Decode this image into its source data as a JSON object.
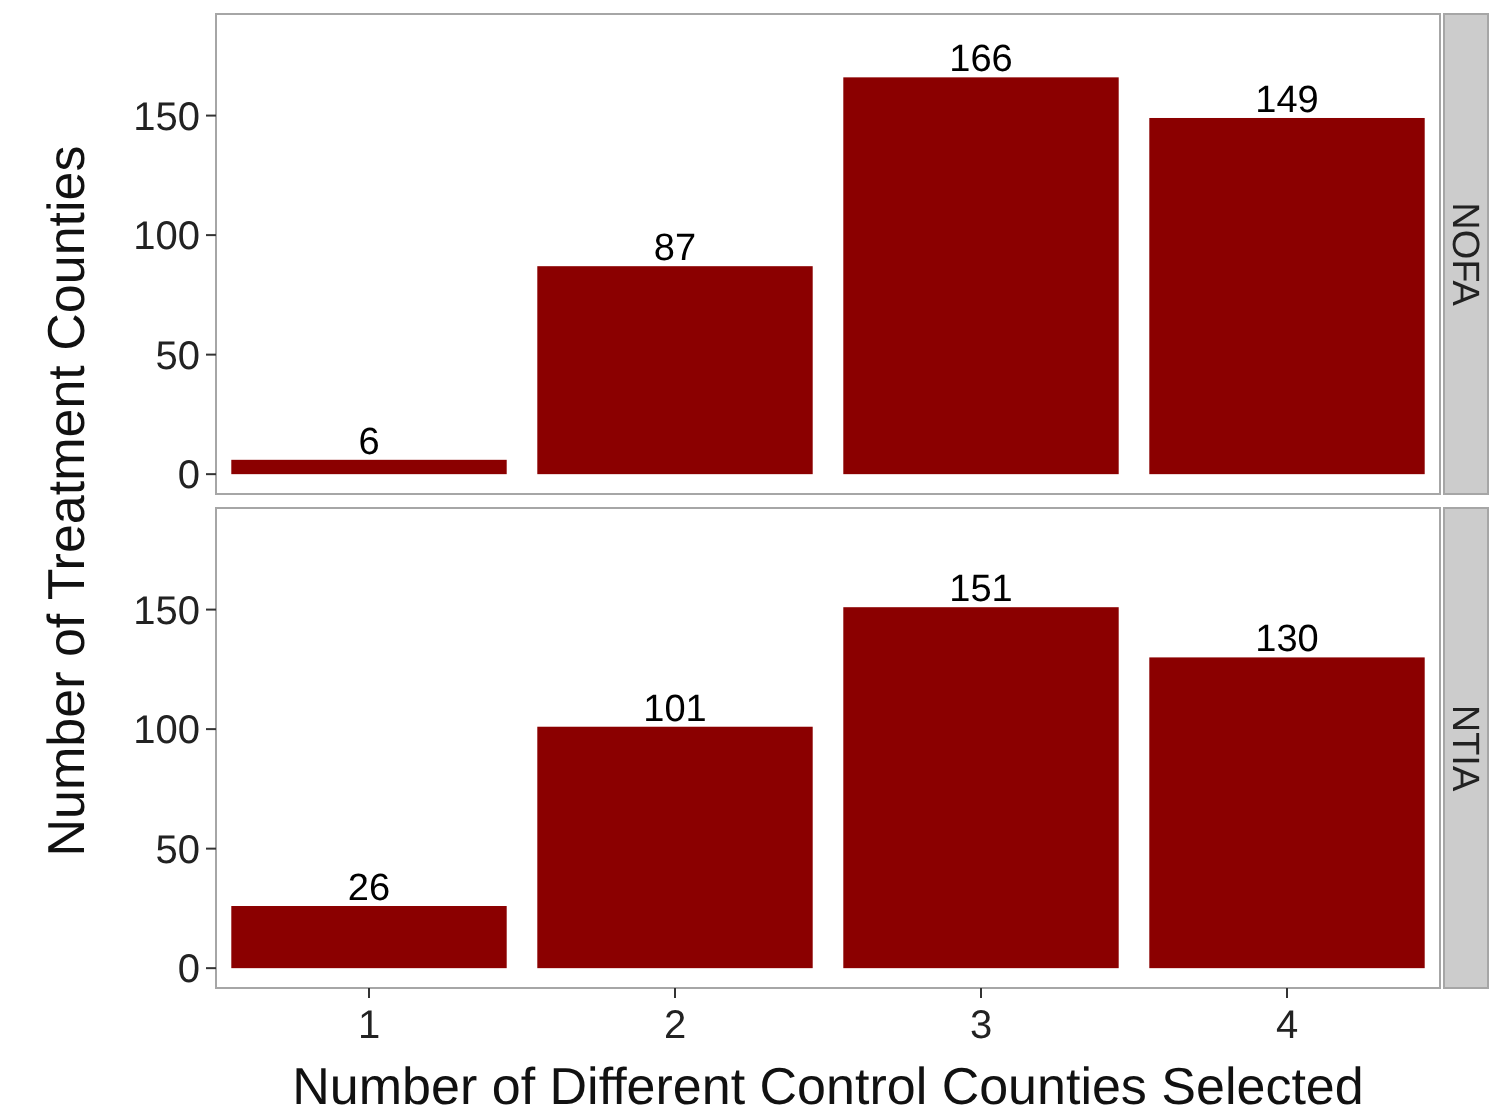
{
  "chart_data": [
    {
      "type": "bar",
      "title": "NOFA",
      "ylabel": "Number of Treatment Counties",
      "categories": [
        null,
        null,
        null,
        null
      ],
      "values": [
        6,
        87,
        166,
        149
      ],
      "color": "#8b0000",
      "ylim": [
        -8.3,
        192.5
      ],
      "yticks": [
        0,
        50,
        100,
        150
      ],
      "data_labels": true,
      "grid": false,
      "tick_labels": "y"
    },
    {
      "type": "bar",
      "title": "NTIA",
      "xlabel": "Number of Different Control Counties Selected",
      "categories": [
        "1",
        "2",
        "3",
        "4"
      ],
      "values": [
        26,
        101,
        151,
        130
      ],
      "color": "#8b0000",
      "ylim": [
        -8.3,
        192.5
      ],
      "yticks": [
        0,
        50,
        100,
        150
      ],
      "data_labels": true,
      "grid": false
    }
  ]
}
